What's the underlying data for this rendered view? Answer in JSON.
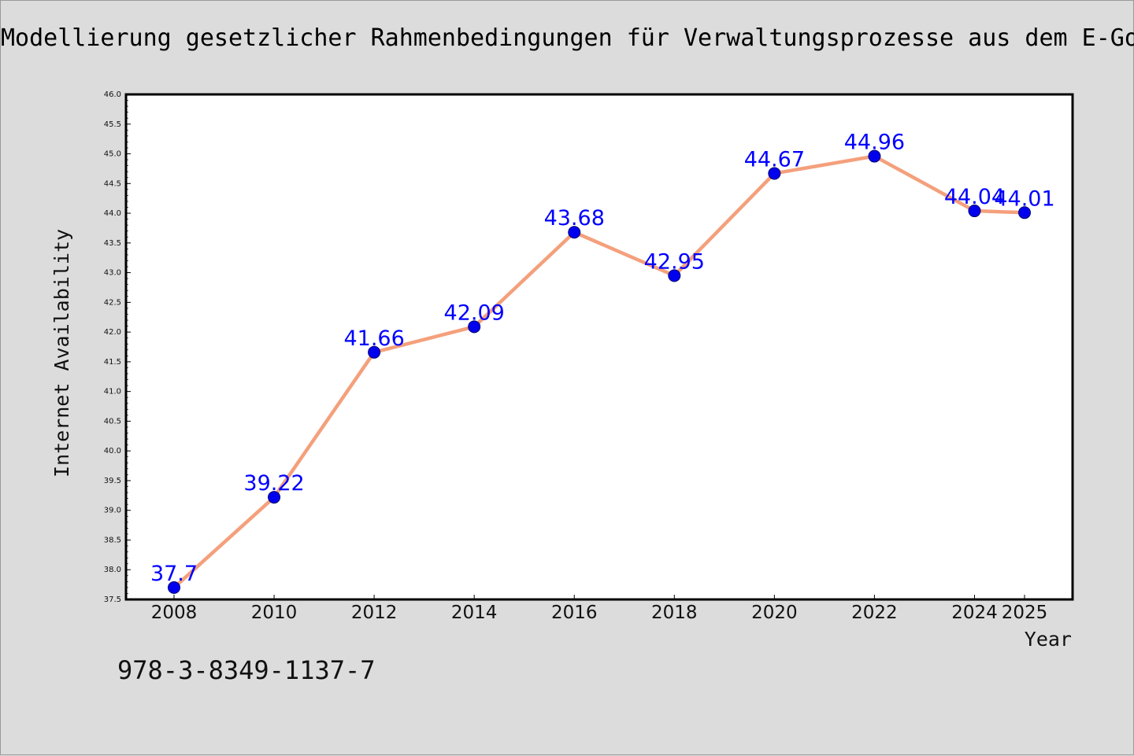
{
  "chart_data": {
    "type": "line",
    "title": "Modellierung gesetzlicher Rahmenbedingungen für Verwaltungsprozesse aus dem E-Go",
    "xlabel": "Year",
    "ylabel": "Internet Availability",
    "x": [
      2008,
      2010,
      2012,
      2014,
      2016,
      2018,
      2020,
      2022,
      2024,
      2025
    ],
    "x_ticks": [
      "2008",
      "2010",
      "2012",
      "2014",
      "2016",
      "2018",
      "2020",
      "2022",
      "2024",
      "2025"
    ],
    "y_ticks": [
      "37.5",
      "38.0",
      "38.5",
      "39.0",
      "39.5",
      "40.0",
      "40.5",
      "41.0",
      "41.5",
      "42.0",
      "42.5",
      "43.0",
      "43.5",
      "44.0",
      "44.5",
      "45.0",
      "45.5",
      "46.0"
    ],
    "series": [
      {
        "values": [
          37.7,
          39.22,
          41.66,
          42.09,
          43.68,
          42.95,
          44.67,
          44.96,
          44.04,
          44.01
        ],
        "labels": [
          "37.7",
          "39.22",
          "41.66",
          "42.09",
          "43.68",
          "42.95",
          "44.67",
          "44.96",
          "44.04",
          "44.01"
        ],
        "line_color": "#f4a07c",
        "marker_color": "#0000ee",
        "label_color": "#0000ff"
      }
    ],
    "ylim": [
      37.5,
      46.0
    ],
    "grid": false,
    "legend": "none"
  },
  "footer": {
    "isbn": "978-3-8349-1137-7"
  },
  "colors": {
    "background": "#dcdcdc",
    "plot_area": "#ffffff",
    "axes": "#000000"
  }
}
